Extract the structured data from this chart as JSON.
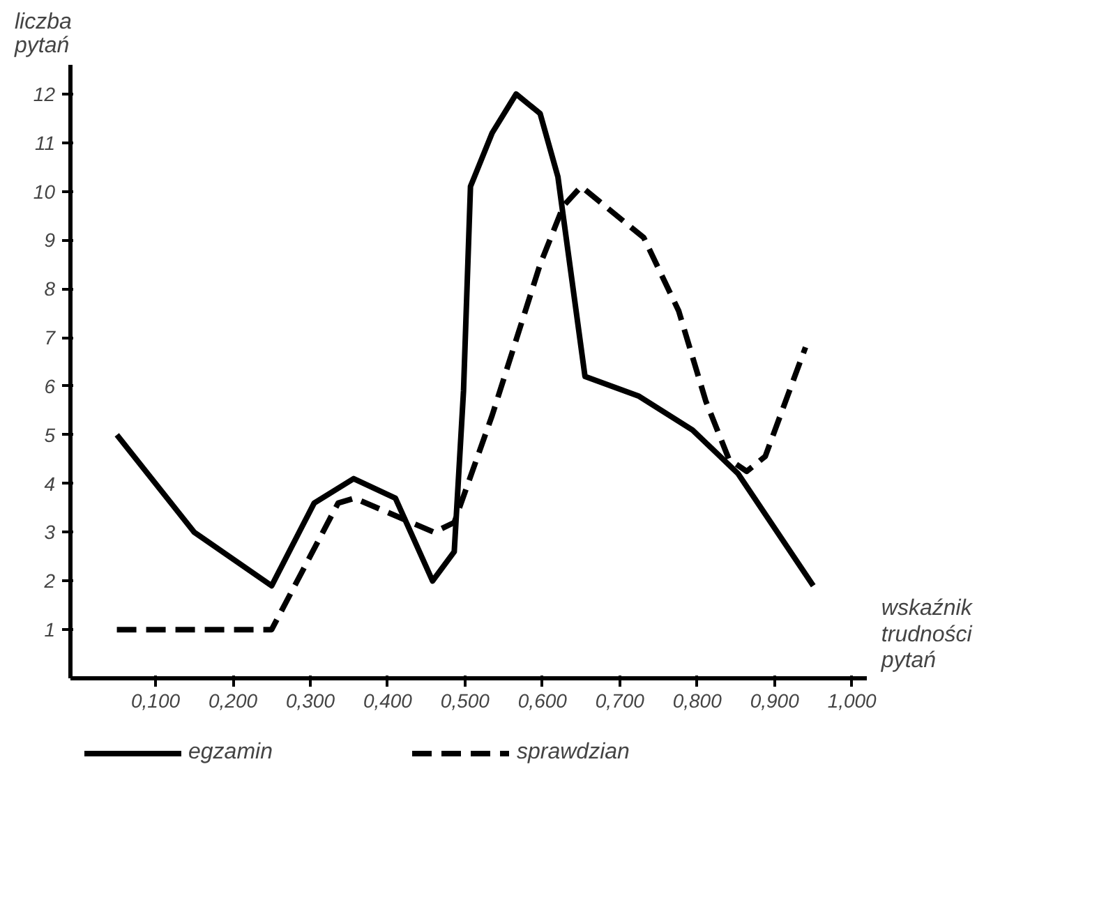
{
  "chart_data": {
    "type": "line",
    "xlabel": "wskaźnik trudności pytań",
    "ylabel": "liczba pytań",
    "xlim": [
      -0.01,
      1.02
    ],
    "ylim": [
      0,
      12.6
    ],
    "xticks": [
      {
        "value": 0.1,
        "label": "0,100"
      },
      {
        "value": 0.2,
        "label": "0,200"
      },
      {
        "value": 0.3,
        "label": "0,300"
      },
      {
        "value": 0.4,
        "label": "0,400"
      },
      {
        "value": 0.5,
        "label": "0,500"
      },
      {
        "value": 0.6,
        "label": "0,600"
      },
      {
        "value": 0.7,
        "label": "0,700"
      },
      {
        "value": 0.8,
        "label": "0,800"
      },
      {
        "value": 0.9,
        "label": "0,900"
      },
      {
        "value": 1.0,
        "label": "1,000"
      }
    ],
    "yticks": [
      1,
      2,
      3,
      4,
      5,
      6,
      7,
      8,
      9,
      10,
      11,
      12
    ],
    "grid": false,
    "legend": "bottom",
    "marker": "none",
    "series": [
      {
        "name": "egzamin",
        "color": "#000000",
        "line_style": "solid",
        "x": [
          0.05,
          0.15,
          0.25,
          0.305,
          0.356,
          0.41,
          0.458,
          0.486,
          0.498,
          0.507,
          0.535,
          0.566,
          0.597,
          0.62,
          0.655,
          0.724,
          0.794,
          0.853,
          0.95
        ],
        "values": [
          5,
          3,
          1.9,
          3.6,
          4.1,
          3.7,
          2.0,
          2.6,
          5.9,
          10.1,
          11.2,
          12.0,
          11.6,
          10.3,
          6.2,
          5.8,
          5.1,
          4.2,
          1.9
        ]
      },
      {
        "name": "sprawdzian",
        "color": "#000000",
        "line_style": "dashed",
        "x": [
          0.05,
          0.25,
          0.336,
          0.357,
          0.46,
          0.486,
          0.535,
          0.597,
          0.627,
          0.65,
          0.731,
          0.776,
          0.811,
          0.841,
          0.864,
          0.888,
          0.94
        ],
        "values": [
          1,
          1,
          3.6,
          3.7,
          3.0,
          3.2,
          5.4,
          8.5,
          9.7,
          10.1,
          9.05,
          7.55,
          5.7,
          4.5,
          4.25,
          4.56,
          6.8
        ]
      }
    ]
  }
}
